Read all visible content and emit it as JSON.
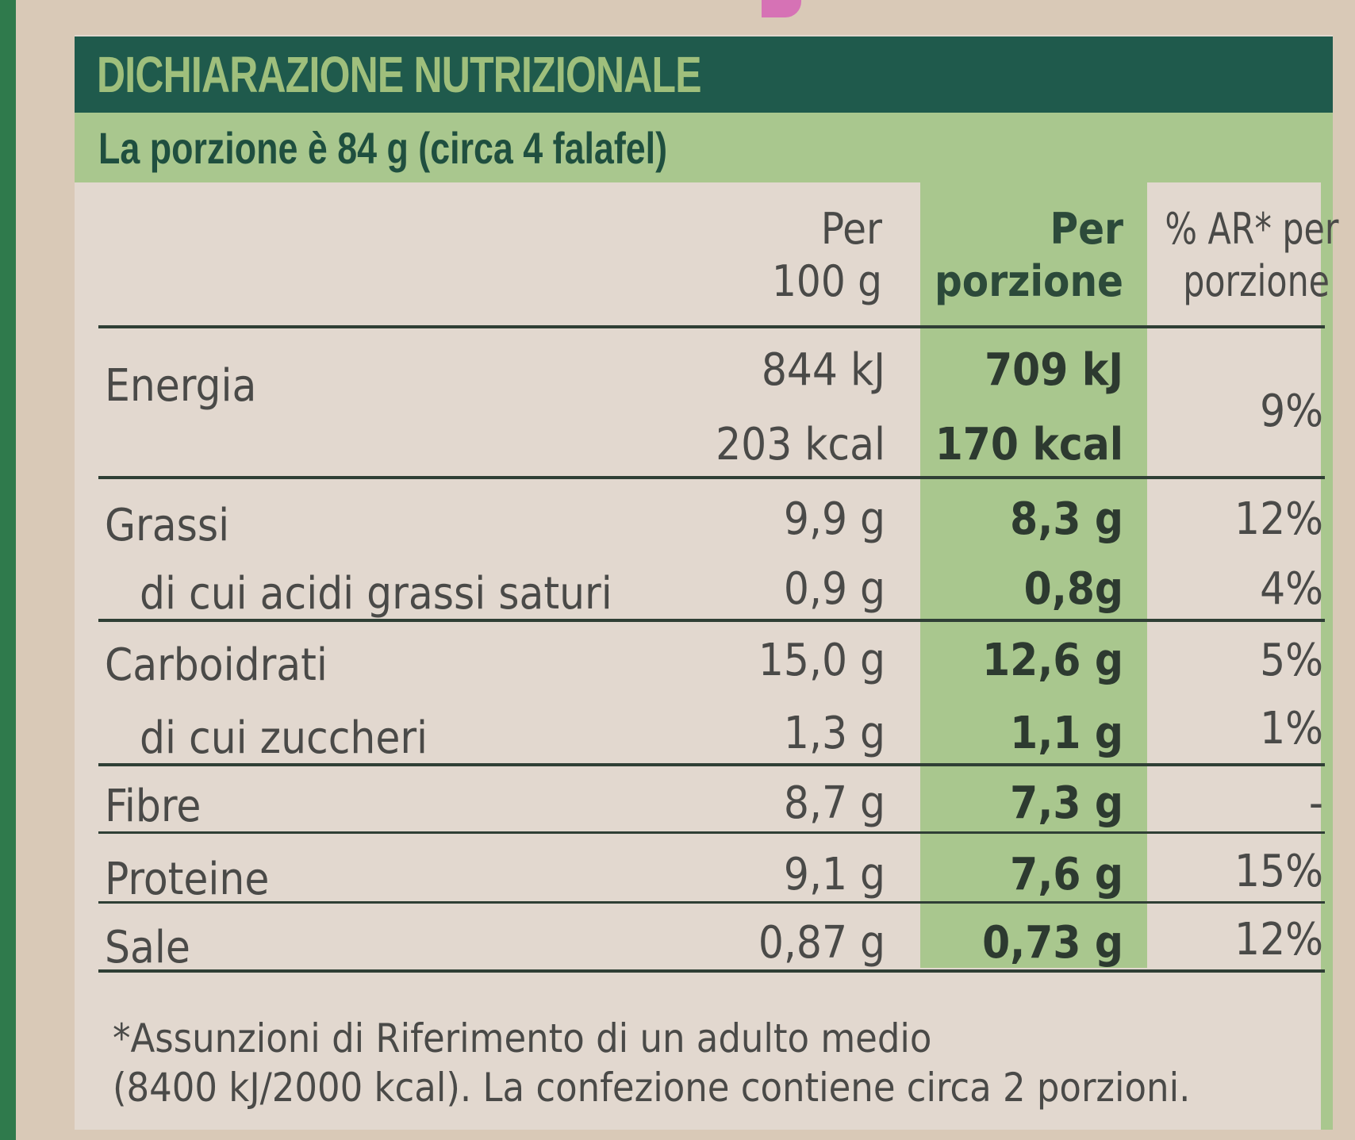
{
  "title": "DICHIARAZIONE NUTRIZIONALE",
  "portion": "La porzione è 84 g (circa 4 falafel)",
  "headers": {
    "per100_line1": "Per",
    "per100_line2": "100 g",
    "perPortion_line1": "Per",
    "perPortion_line2": "porzione",
    "ar_line1": "% AR* per",
    "ar_line2": "porzione"
  },
  "rows": {
    "energia": {
      "label": "Energia",
      "kj100": "844 kJ",
      "kcal100": "203 kcal",
      "kjPor": "709 kJ",
      "kcalPor": "170 kcal",
      "ar": "9%"
    },
    "grassi": {
      "label": "Grassi",
      "v100": "9,9 g",
      "vPor": "8,3 g",
      "ar": "12%"
    },
    "saturi": {
      "label": "di cui acidi grassi saturi",
      "v100": "0,9 g",
      "vPor": "0,8g",
      "ar": "4%"
    },
    "carboidrati": {
      "label": "Carboidrati",
      "v100": "15,0 g",
      "vPor": "12,6 g",
      "ar": "5%"
    },
    "zuccheri": {
      "label": "di cui zuccheri",
      "v100": "1,3 g",
      "vPor": "1,1 g",
      "ar": "1%"
    },
    "fibre": {
      "label": "Fibre",
      "v100": "8,7 g",
      "vPor": "7,3 g",
      "ar": "-"
    },
    "proteine": {
      "label": "Proteine",
      "v100": "9,1 g",
      "vPor": "7,6 g",
      "ar": "15%"
    },
    "sale": {
      "label": "Sale",
      "v100": "0,87 g",
      "vPor": "0,73 g",
      "ar": "12%"
    }
  },
  "footnote": {
    "line1": "*Assunzioni di Riferimento di un adulto medio",
    "line2": "(8400 kJ/2000 kcal). La confezione contiene circa 2 porzioni."
  }
}
